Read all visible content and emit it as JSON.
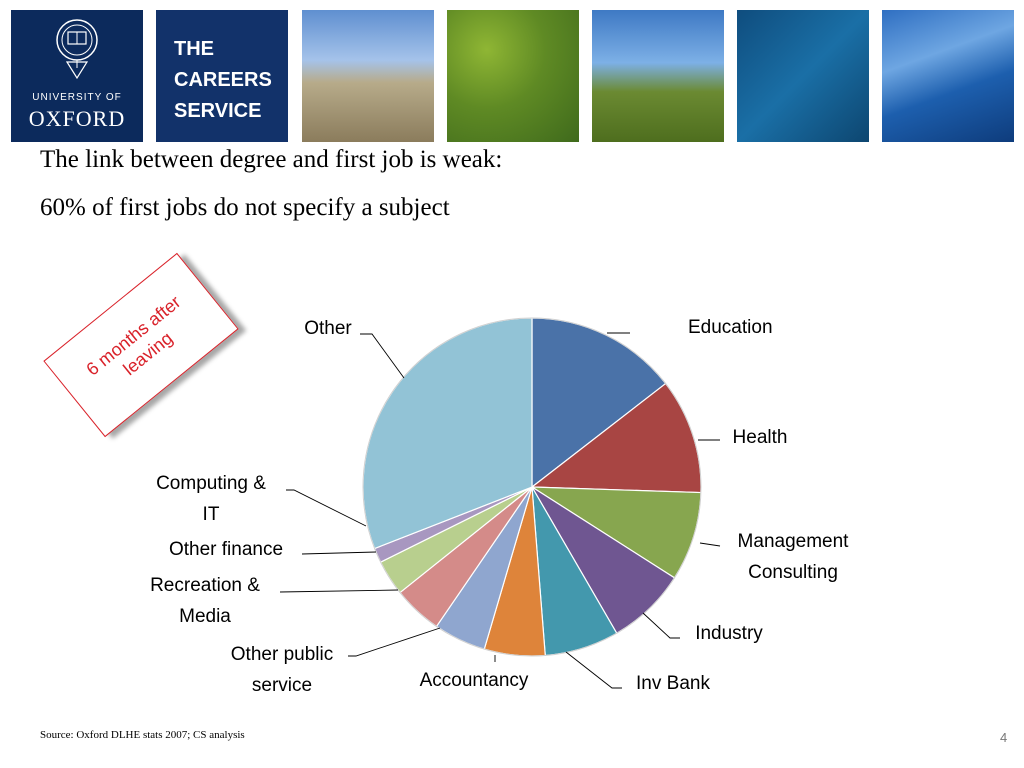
{
  "banner": {
    "university_line1": "UNIVERSITY OF",
    "university_line2": "OXFORD",
    "careers_title": "THE CAREERS SERVICE",
    "crest_icon": "oxford-crest-icon",
    "brand_color": "#0c2a5c"
  },
  "heading": {
    "line1": "The link between degree and first job is weak:",
    "line2": "60% of first jobs do not specify a subject"
  },
  "stamp": {
    "text": "6 months after leaving",
    "color": "#d9222a"
  },
  "chart_data": {
    "type": "pie",
    "title": "",
    "start_angle_deg": 0,
    "direction": "clockwise",
    "slices": [
      {
        "label": "Education",
        "value": 14.5,
        "color": "#4a72a8"
      },
      {
        "label": "Health",
        "value": 11.0,
        "color": "#a84543"
      },
      {
        "label": "Management Consulting",
        "value": 8.5,
        "color": "#87a64f"
      },
      {
        "label": "Industry",
        "value": 7.6,
        "color": "#6f5691"
      },
      {
        "label": "Inv Bank",
        "value": 7.1,
        "color": "#4398ad"
      },
      {
        "label": "Accountancy",
        "value": 5.8,
        "color": "#de843a"
      },
      {
        "label": "Other public service",
        "value": 5.0,
        "color": "#8fa6cf"
      },
      {
        "label": "Recreation & Media",
        "value": 4.7,
        "color": "#d48b89"
      },
      {
        "label": "Other finance",
        "value": 3.4,
        "color": "#b8cf8e"
      },
      {
        "label": "Computing & IT",
        "value": 1.4,
        "color": "#a897c0"
      },
      {
        "label": "Other",
        "value": 30.9,
        "color": "#92c3d6"
      }
    ]
  },
  "footer": {
    "source": "Source: Oxford DLHE stats 2007; CS analysis",
    "page_number": "4"
  }
}
